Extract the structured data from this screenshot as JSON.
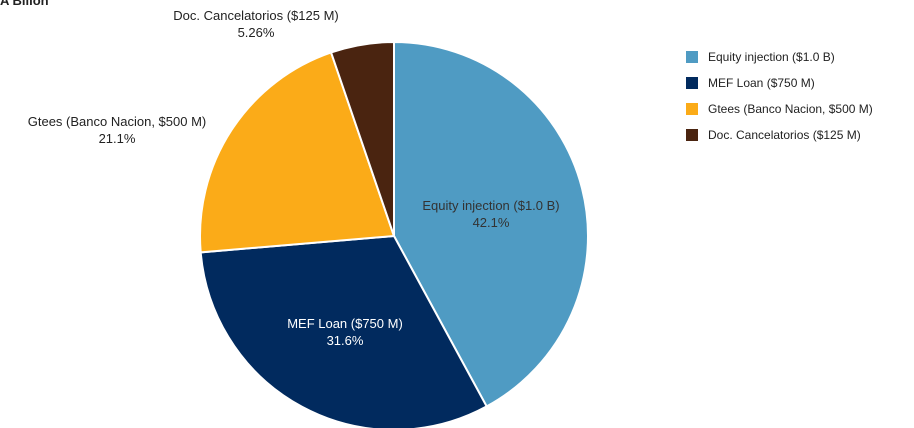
{
  "chart_data": {
    "type": "pie",
    "title": "A Billon",
    "slices": [
      {
        "label": "Equity injection ($1.0 B)",
        "pct_label": "42.1%",
        "value": 42.1,
        "color": "#4f9bc3",
        "label_color": "#333333"
      },
      {
        "label": "MEF Loan ($750 M)",
        "pct_label": "31.6%",
        "value": 31.6,
        "color": "#012a5e",
        "label_color": "#ffffff"
      },
      {
        "label": "Gtees (Banco Nacion, $500 M)",
        "pct_label": "21.1%",
        "value": 21.1,
        "color": "#fbab18",
        "label_color": "#222222"
      },
      {
        "label": "Doc. Cancelatorios ($125 M)",
        "pct_label": "5.26%",
        "value": 5.26,
        "color": "#4a2410",
        "label_color": "#222222"
      }
    ],
    "legend": {
      "position": "right"
    }
  }
}
